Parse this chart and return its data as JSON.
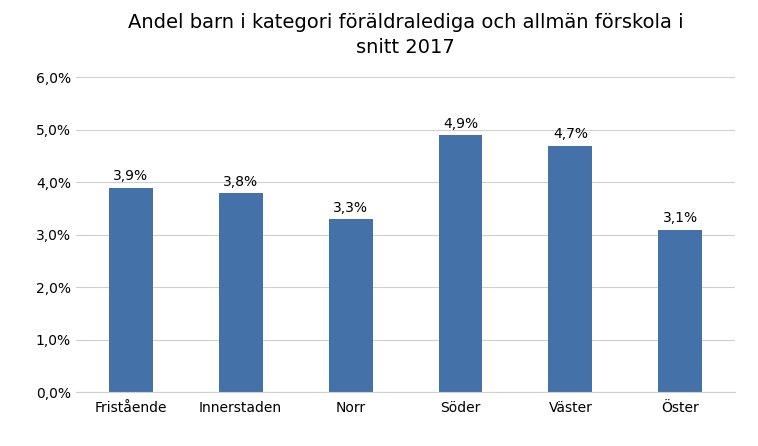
{
  "title": "Andel barn i kategori föräldralediga och allmän förskola i\nsnitt 2017",
  "categories": [
    "Fristående",
    "Innerstaden",
    "Norr",
    "Söder",
    "Väster",
    "Öster"
  ],
  "values": [
    0.039,
    0.038,
    0.033,
    0.049,
    0.047,
    0.031
  ],
  "labels": [
    "3,9%",
    "3,8%",
    "3,3%",
    "4,9%",
    "4,7%",
    "3,1%"
  ],
  "bar_color": "#4472a8",
  "ylim": [
    0,
    0.062
  ],
  "yticks": [
    0.0,
    0.01,
    0.02,
    0.03,
    0.04,
    0.05,
    0.06
  ],
  "ytick_labels": [
    "0,0%",
    "1,0%",
    "2,0%",
    "3,0%",
    "4,0%",
    "5,0%",
    "6,0%"
  ],
  "background_color": "#ffffff",
  "title_fontsize": 14,
  "label_fontsize": 10,
  "tick_fontsize": 10,
  "bar_width": 0.4,
  "grid_color": "#d0d0d0",
  "spine_color": "#d0d0d0"
}
